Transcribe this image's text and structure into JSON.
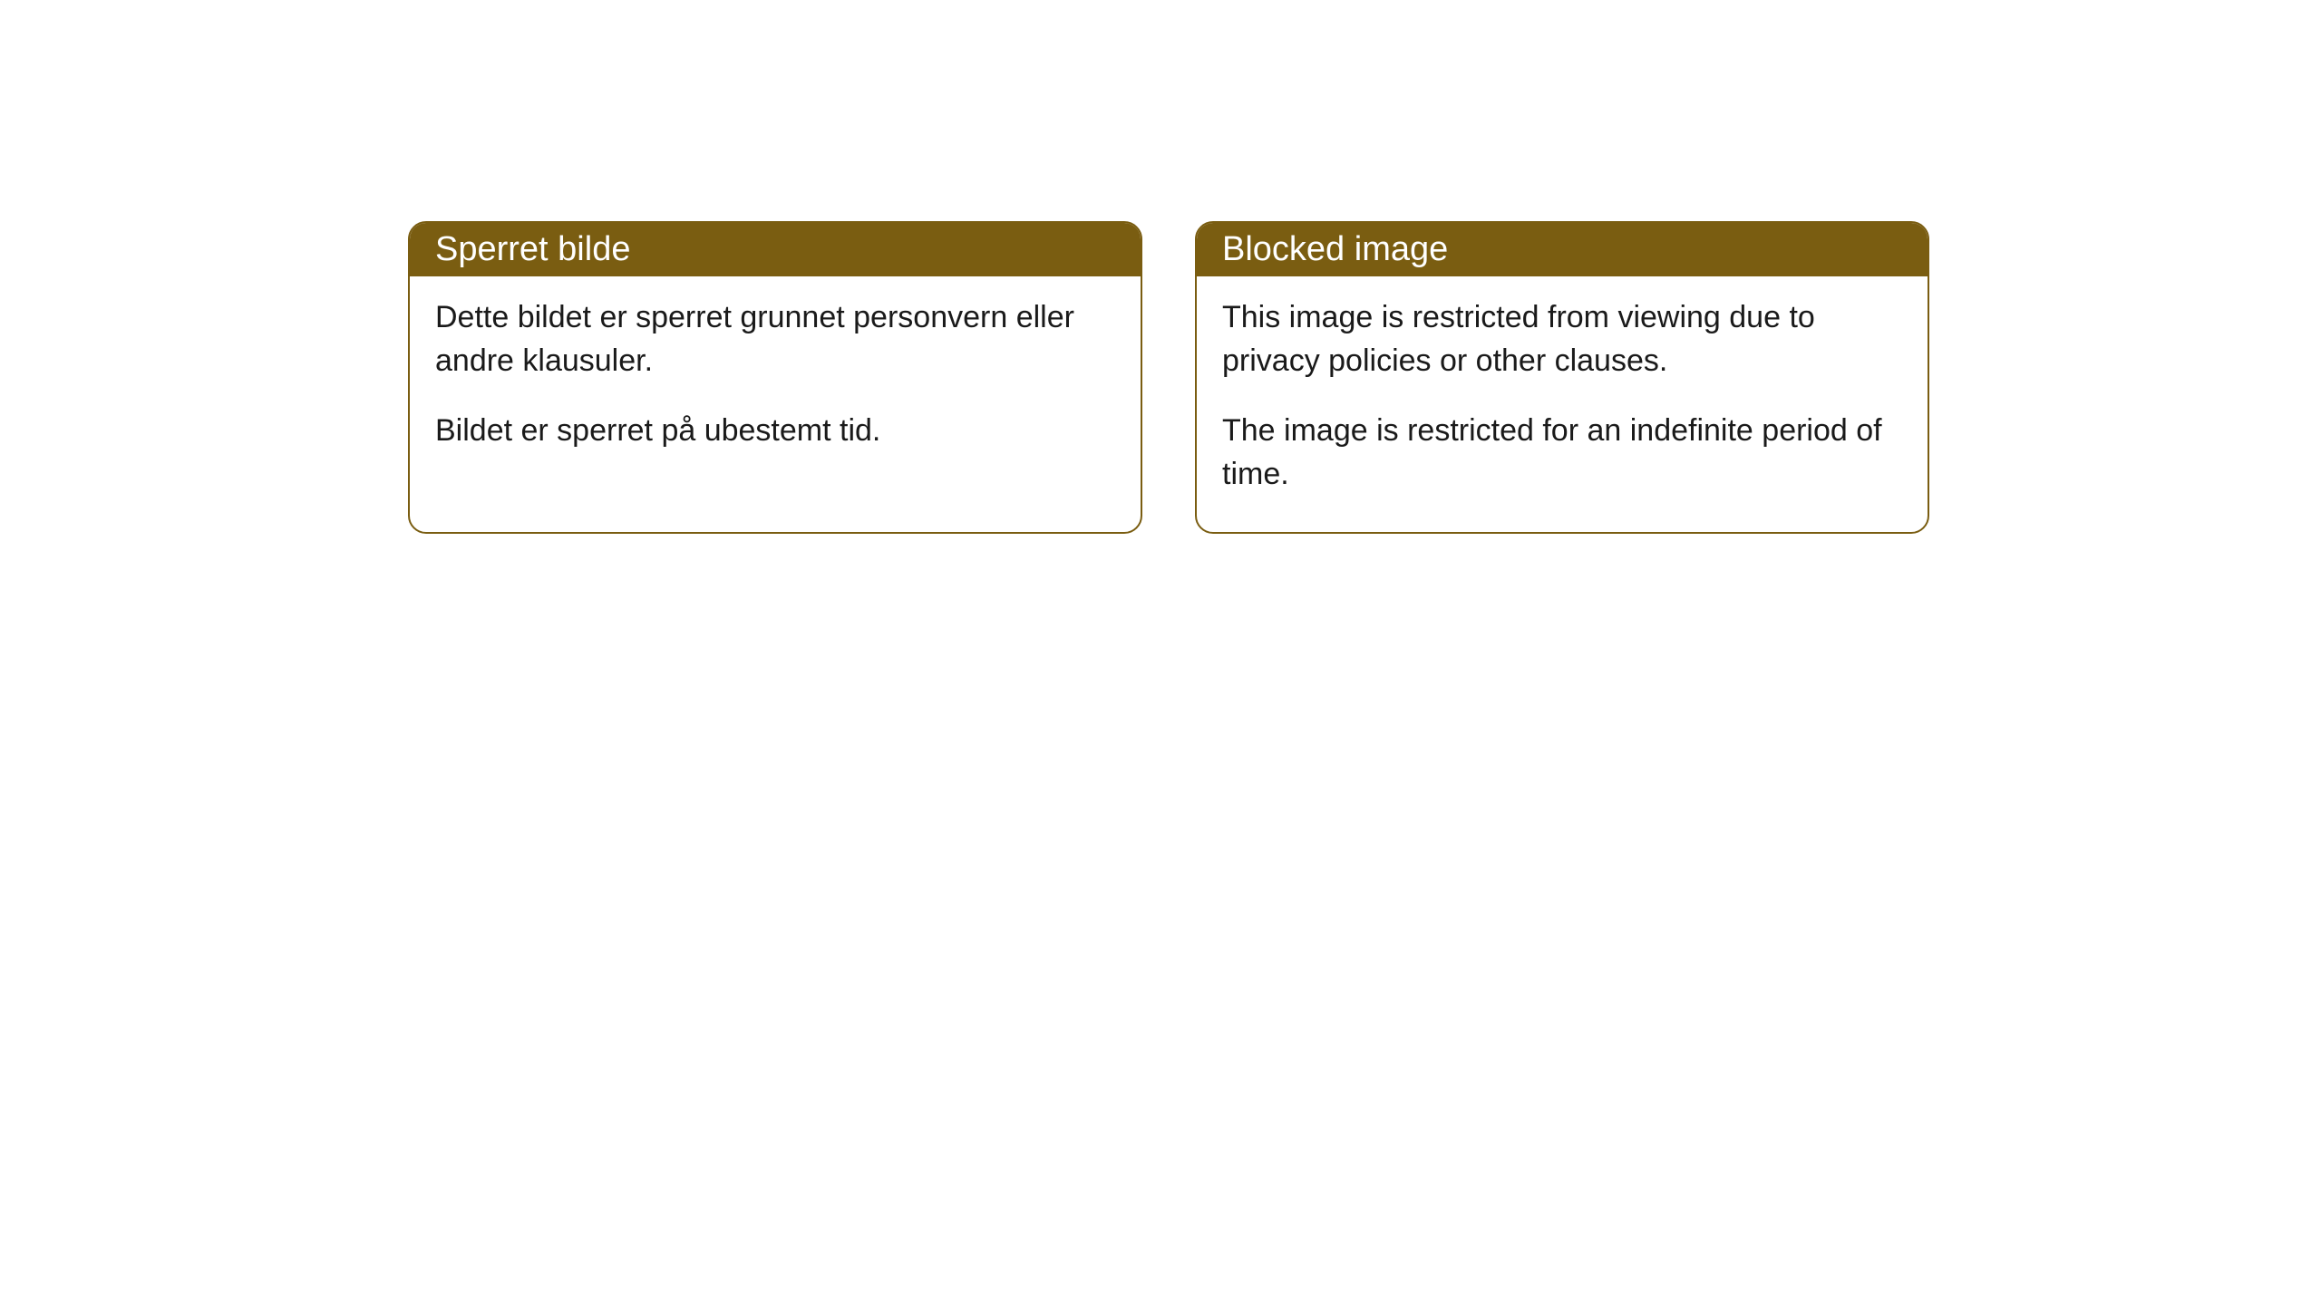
{
  "cards": [
    {
      "title": "Sperret bilde",
      "paragraph1": "Dette bildet er sperret grunnet personvern eller andre klausuler.",
      "paragraph2": "Bildet er sperret på ubestemt tid."
    },
    {
      "title": "Blocked image",
      "paragraph1": "This image is restricted from viewing due to privacy policies or other clauses.",
      "paragraph2": "The image is restricted for an indefinite period of time."
    }
  ],
  "styling": {
    "header_background": "#7a5d11",
    "header_text_color": "#ffffff",
    "border_color": "#7a5d11",
    "body_text_color": "#1a1a1a",
    "body_background": "#ffffff",
    "border_radius": 20,
    "header_fontsize": 38,
    "body_fontsize": 34
  }
}
